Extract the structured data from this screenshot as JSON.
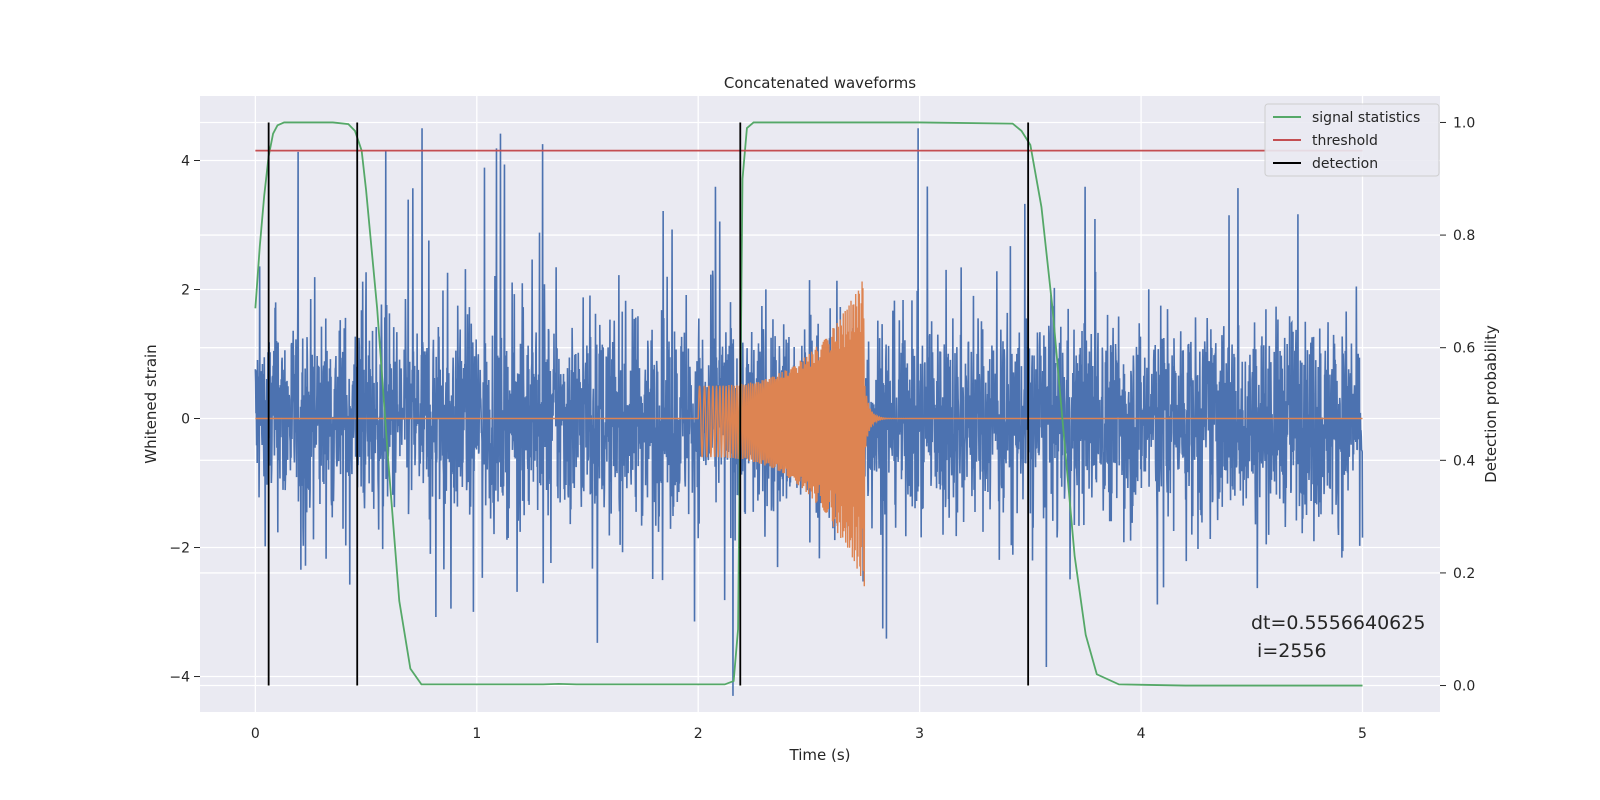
{
  "chart_data": {
    "type": "line",
    "title": "Concatenated waveforms",
    "xlabel": "Time (s)",
    "ylabel": "Whitened strain",
    "ylabel_right": "Detection probability",
    "xlim": [
      -0.25,
      5.35
    ],
    "ylim": [
      -4.55,
      5.0
    ],
    "ylim_right": [
      -0.047,
      1.047
    ],
    "x_ticks": [
      "0",
      "1",
      "2",
      "3",
      "4",
      "5"
    ],
    "y_ticks": [
      "−4",
      "−2",
      "0",
      "2",
      "4"
    ],
    "y_ticks_right": [
      "0.0",
      "0.2",
      "0.4",
      "0.6",
      "0.8",
      "1.0"
    ],
    "grid": true,
    "legend_position": "upper right",
    "legend": [
      "signal statistics",
      "threshold",
      "detection"
    ],
    "series": [
      {
        "name": "",
        "description": "whitened strain noise",
        "color": "#4c72b0",
        "x_range": [
          0,
          5
        ],
        "typical_amplitude": 1.0,
        "spike_extremes": {
          "max": 4.5,
          "min": -4.3
        }
      },
      {
        "name": "",
        "description": "injected chirp waveform",
        "color": "#dd8452",
        "x_range": [
          0,
          5
        ],
        "chirp_start": 2.0,
        "chirp_merger": 2.75,
        "envelope_start": 0.6,
        "envelope_peak": 2.2,
        "envelope_min": -2.6
      },
      {
        "name": "signal statistics",
        "axis": "right",
        "color": "#55a868",
        "x": [
          0,
          0.02,
          0.04,
          0.06,
          0.08,
          0.1,
          0.13,
          0.2,
          0.35,
          0.42,
          0.45,
          0.48,
          0.5,
          0.55,
          0.6,
          0.65,
          0.7,
          0.75,
          1.0,
          1.3,
          1.37,
          1.45,
          2.0,
          2.12,
          2.16,
          2.18,
          2.19,
          2.2,
          2.22,
          2.25,
          2.5,
          3.0,
          3.42,
          3.46,
          3.5,
          3.55,
          3.6,
          3.65,
          3.7,
          3.75,
          3.8,
          3.9,
          4.2,
          5.0
        ],
        "y": [
          0.67,
          0.78,
          0.87,
          0.94,
          0.98,
          0.995,
          1.0,
          1.0,
          1.0,
          0.997,
          0.985,
          0.95,
          0.88,
          0.67,
          0.4,
          0.15,
          0.03,
          0.002,
          0.002,
          0.002,
          0.003,
          0.002,
          0.002,
          0.002,
          0.008,
          0.1,
          0.5,
          0.9,
          0.99,
          1.0,
          1.0,
          1.0,
          0.998,
          0.985,
          0.96,
          0.85,
          0.67,
          0.45,
          0.23,
          0.09,
          0.02,
          0.002,
          0.0,
          0.0
        ]
      },
      {
        "name": "threshold",
        "axis": "right",
        "color": "#c44e52",
        "x": [
          0,
          5
        ],
        "y": [
          0.95,
          0.95
        ]
      }
    ],
    "detection_lines": {
      "name": "detection",
      "color": "#000000",
      "x": [
        0.06,
        0.46,
        2.19,
        3.49
      ],
      "y_range_right": [
        0.0,
        1.0
      ]
    },
    "annotation": "dt=0.5556640625\n i=2556"
  }
}
